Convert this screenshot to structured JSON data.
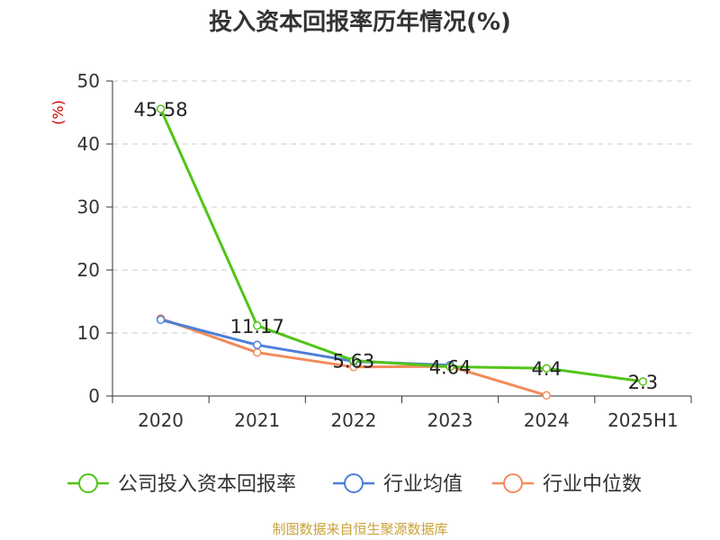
{
  "chart_data": {
    "type": "line",
    "title": "投入资本回报率历年情况(%)",
    "ylabel": "(%)",
    "xlabel": "",
    "categories": [
      "2020",
      "2021",
      "2022",
      "2023",
      "2024",
      "2025H1"
    ],
    "ylim": [
      0,
      50
    ],
    "yticks": [
      0,
      10,
      20,
      30,
      40,
      50
    ],
    "grid": true,
    "legend_position": "bottom",
    "series": [
      {
        "name": "公司投入资本回报率",
        "color": "#52c41a",
        "values": [
          45.58,
          11.17,
          5.63,
          4.64,
          4.4,
          2.3
        ],
        "labels": [
          "45.58",
          "11.17",
          "5.63",
          "4.64",
          "4.4",
          "2.3"
        ]
      },
      {
        "name": "行业均值",
        "color": "#4e7fd8",
        "values": [
          12.1,
          8.1,
          5.5,
          4.9,
          null,
          null
        ]
      },
      {
        "name": "行业中位数",
        "color": "#f28c5b",
        "values": [
          12.3,
          6.9,
          4.6,
          4.7,
          0.1,
          null
        ]
      }
    ]
  },
  "footer": {
    "source": "制图数据来自恒生聚源数据库"
  }
}
